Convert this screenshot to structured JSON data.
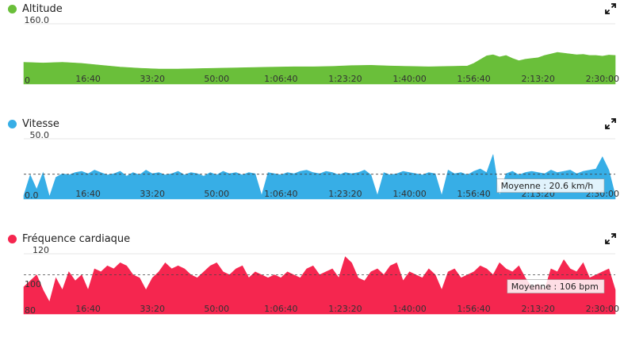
{
  "chart_data": [
    {
      "type": "area",
      "title": "Altitude",
      "color": "#6abf3a",
      "ylim": [
        0,
        160
      ],
      "ytick_top": "160.0",
      "ytick_bottom": "0",
      "xticks": [
        "16:40",
        "33:20",
        "50:00",
        "1:06:40",
        "1:23:20",
        "1:40:00",
        "1:56:40",
        "2:13:20",
        "2:30:00"
      ],
      "xtick_seconds": [
        1000,
        2000,
        3000,
        4000,
        5000,
        6000,
        7000,
        8000,
        9000
      ],
      "xmax_seconds": 9200,
      "x": [
        0,
        300,
        600,
        900,
        1200,
        1500,
        1800,
        2100,
        2400,
        2700,
        3000,
        3300,
        3600,
        3900,
        4200,
        4500,
        4800,
        4950,
        5100,
        5400,
        5700,
        6000,
        6300,
        6600,
        6900,
        7000,
        7100,
        7200,
        7300,
        7400,
        7500,
        7600,
        7700,
        7800,
        7900,
        8000,
        8100,
        8200,
        8300,
        8400,
        8500,
        8600,
        8700,
        8800,
        8900,
        9000,
        9100,
        9200
      ],
      "values": [
        58,
        56,
        58,
        55,
        50,
        45,
        42,
        40,
        40,
        41,
        42,
        43,
        44,
        45,
        46,
        46,
        47,
        48,
        49,
        50,
        48,
        47,
        46,
        47,
        48,
        55,
        65,
        75,
        78,
        72,
        76,
        68,
        62,
        66,
        68,
        70,
        76,
        80,
        84,
        82,
        80,
        78,
        79,
        76,
        76,
        74,
        77,
        76
      ],
      "avg_label": ""
    },
    {
      "type": "area",
      "title": "Vitesse",
      "color": "#37aee6",
      "ylim": [
        0,
        50
      ],
      "ytick_top": "50.0",
      "ytick_bottom": "0.0",
      "xticks": [
        "16:40",
        "33:20",
        "50:00",
        "1:06:40",
        "1:23:20",
        "1:40:00",
        "1:56:40",
        "2:13:20",
        "2:30:00"
      ],
      "xtick_seconds": [
        1000,
        2000,
        3000,
        4000,
        5000,
        6000,
        7000,
        8000,
        9000
      ],
      "xmax_seconds": 9200,
      "x": [
        0,
        100,
        200,
        300,
        400,
        500,
        600,
        700,
        800,
        900,
        1000,
        1100,
        1200,
        1300,
        1400,
        1500,
        1600,
        1700,
        1800,
        1900,
        2000,
        2100,
        2200,
        2300,
        2400,
        2500,
        2600,
        2700,
        2800,
        2900,
        3000,
        3100,
        3200,
        3300,
        3400,
        3500,
        3600,
        3700,
        3800,
        3900,
        4000,
        4100,
        4200,
        4300,
        4400,
        4500,
        4600,
        4700,
        4800,
        4900,
        5000,
        5100,
        5200,
        5300,
        5400,
        5500,
        5600,
        5700,
        5800,
        5900,
        6000,
        6100,
        6200,
        6300,
        6400,
        6500,
        6600,
        6700,
        6800,
        6900,
        7000,
        7100,
        7200,
        7300,
        7400,
        7500,
        7600,
        7700,
        7800,
        7900,
        8000,
        8100,
        8200,
        8300,
        8400,
        8500,
        8600,
        8700,
        8800,
        8900,
        9000,
        9100,
        9200
      ],
      "values": [
        3,
        20,
        8,
        22,
        2,
        18,
        21,
        20,
        22,
        23,
        21,
        24,
        22,
        20,
        21,
        23,
        19,
        22,
        20,
        24,
        21,
        22,
        20,
        21,
        23,
        20,
        22,
        21,
        19,
        22,
        20,
        23,
        21,
        22,
        20,
        22,
        21,
        3,
        22,
        21,
        20,
        22,
        21,
        23,
        24,
        22,
        21,
        23,
        22,
        20,
        22,
        21,
        22,
        24,
        20,
        3,
        22,
        20,
        21,
        23,
        22,
        21,
        20,
        22,
        21,
        3,
        24,
        21,
        22,
        20,
        23,
        25,
        22,
        37,
        3,
        21,
        23,
        20,
        22,
        23,
        22,
        21,
        24,
        22,
        23,
        24,
        21,
        23,
        24,
        25,
        35,
        24,
        3
      ],
      "avg": 20.6,
      "avg_label": "Moyenne : 20.6 km/h"
    },
    {
      "type": "area",
      "title": "Fréquence cardiaque",
      "color": "#f5264f",
      "ylim": [
        80,
        120
      ],
      "ytick_top": "120",
      "ytick_mid": "100",
      "ytick_bottom": "80",
      "xticks": [
        "16:40",
        "33:20",
        "50:00",
        "1:06:40",
        "1:23:20",
        "1:40:00",
        "1:56:40",
        "2:13:20",
        "2:30:00"
      ],
      "xtick_seconds": [
        1000,
        2000,
        3000,
        4000,
        5000,
        6000,
        7000,
        8000,
        9000
      ],
      "xmax_seconds": 9200,
      "x": [
        0,
        100,
        200,
        300,
        400,
        500,
        600,
        700,
        800,
        900,
        1000,
        1100,
        1200,
        1300,
        1400,
        1500,
        1600,
        1700,
        1800,
        1900,
        2000,
        2100,
        2200,
        2300,
        2400,
        2500,
        2600,
        2700,
        2800,
        2900,
        3000,
        3100,
        3200,
        3300,
        3400,
        3500,
        3600,
        3700,
        3800,
        3900,
        4000,
        4100,
        4200,
        4300,
        4400,
        4500,
        4600,
        4700,
        4800,
        4900,
        5000,
        5100,
        5200,
        5300,
        5400,
        5500,
        5600,
        5700,
        5800,
        5900,
        6000,
        6100,
        6200,
        6300,
        6400,
        6500,
        6600,
        6700,
        6800,
        6900,
        7000,
        7100,
        7200,
        7300,
        7400,
        7500,
        7600,
        7700,
        7800,
        7900,
        8000,
        8100,
        8200,
        8300,
        8400,
        8500,
        8600,
        8700,
        8800,
        8900,
        9000,
        9100,
        9200
      ],
      "values": [
        98,
        102,
        106,
        96,
        88,
        104,
        96,
        108,
        102,
        106,
        96,
        110,
        108,
        112,
        110,
        114,
        112,
        106,
        104,
        96,
        104,
        108,
        114,
        110,
        112,
        110,
        106,
        104,
        108,
        112,
        114,
        108,
        106,
        110,
        112,
        104,
        108,
        106,
        104,
        106,
        104,
        108,
        106,
        104,
        110,
        112,
        106,
        108,
        110,
        104,
        118,
        114,
        104,
        102,
        108,
        110,
        106,
        112,
        114,
        102,
        108,
        106,
        104,
        110,
        106,
        96,
        108,
        110,
        104,
        106,
        108,
        112,
        110,
        106,
        114,
        110,
        108,
        112,
        104,
        98,
        100,
        96,
        110,
        108,
        116,
        110,
        108,
        114,
        104,
        106,
        108,
        110,
        96
      ],
      "avg": 106,
      "avg_label": "Moyenne : 106 bpm"
    }
  ]
}
